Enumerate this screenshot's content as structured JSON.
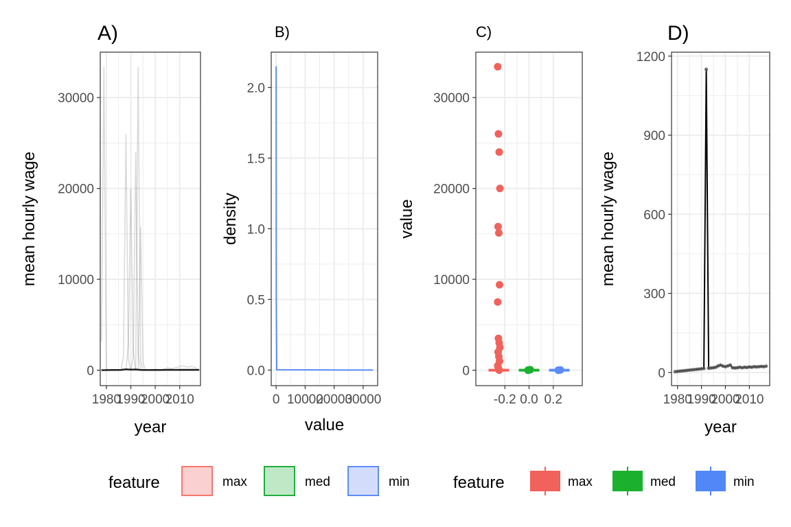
{
  "chart_data": [
    {
      "tag": "A)",
      "type": "line",
      "xlabel": "year",
      "ylabel": "mean hourly wage",
      "xticks": [
        1980,
        1990,
        2000,
        2010
      ],
      "xtick_labels": [
        "1980",
        "1990",
        "2000",
        "2010"
      ],
      "yticks": [
        0,
        10000,
        20000,
        30000
      ],
      "ytick_labels": [
        "0",
        "10000",
        "20000",
        "30000"
      ],
      "xlim": [
        1977.5,
        2018.5
      ],
      "ylim": [
        -1700,
        35000
      ],
      "grid": true,
      "series": [
        {
          "x": [
            1978,
            1979,
            1980,
            1981
          ],
          "values": [
            3200,
            33400,
            200,
            0
          ]
        },
        {
          "x": [
            1986,
            1987,
            1988,
            1989,
            1990
          ],
          "values": [
            0,
            1500,
            26000,
            1200,
            0
          ]
        },
        {
          "x": [
            1988,
            1989,
            1990,
            1991,
            1992
          ],
          "values": [
            0,
            3000,
            20000,
            2000,
            0
          ]
        },
        {
          "x": [
            1990,
            1991,
            1992,
            1993,
            1994
          ],
          "values": [
            0,
            1500,
            24000,
            1800,
            0
          ]
        },
        {
          "x": [
            1992,
            1993,
            1994,
            1995
          ],
          "values": [
            0,
            33400,
            1000,
            0
          ]
        },
        {
          "x": [
            1993,
            1994,
            1995,
            1996
          ],
          "values": [
            0,
            15800,
            800,
            0
          ]
        },
        {
          "x": [
            2003,
            2005,
            2007,
            2009,
            2011,
            2013,
            2015,
            2017
          ],
          "values": [
            80,
            250,
            180,
            320,
            500,
            350,
            420,
            200
          ]
        },
        {
          "x": [
            1978,
            1980,
            1982,
            1984,
            1986,
            1988,
            1990,
            1992,
            1994,
            1996,
            1998,
            2000,
            2002,
            2004,
            2006,
            2008,
            2010,
            2012,
            2014,
            2016,
            2018
          ],
          "values": [
            10,
            15,
            20,
            25,
            30,
            100,
            60,
            80,
            30,
            20,
            25,
            30,
            25,
            30,
            35,
            30,
            35,
            40,
            45,
            40,
            45
          ]
        }
      ]
    },
    {
      "tag": "B)",
      "type": "line",
      "xlabel": "value",
      "ylabel": "density",
      "xticks": [
        0,
        10000,
        20000,
        30000
      ],
      "xtick_labels": [
        "0",
        "10000",
        "20000",
        "30000"
      ],
      "yticks": [
        0.0,
        0.5,
        1.0,
        1.5,
        2.0
      ],
      "ytick_labels": [
        "0.0",
        "0.5",
        "1.0",
        "1.5",
        "2.0"
      ],
      "xlim": [
        -1700,
        35000
      ],
      "ylim": [
        -0.11,
        2.25
      ],
      "grid": true,
      "series": [
        {
          "group": "min",
          "x": [
            0,
            60,
            200,
            33400
          ],
          "values": [
            2.15,
            0.5,
            0.002,
            0.0
          ]
        }
      ]
    },
    {
      "tag": "C)",
      "type": "scatter",
      "xlabel": "",
      "ylabel": "value",
      "xticks": [
        -0.2,
        0.0,
        0.2
      ],
      "xtick_labels": [
        "-0.2",
        "0.0",
        "0.2"
      ],
      "yticks": [
        0,
        10000,
        20000,
        30000
      ],
      "ytick_labels": [
        "0",
        "10000",
        "20000",
        "30000"
      ],
      "xlim": [
        -0.44,
        0.44
      ],
      "ylim": [
        -1700,
        35000
      ],
      "grid": true,
      "series": [
        {
          "name": "max",
          "x": -0.25,
          "spread": 0.09,
          "values": [
            33400,
            26000,
            24000,
            20000,
            15800,
            15100,
            9400,
            7500,
            3500,
            3000,
            2500,
            2000,
            1500,
            1000,
            500,
            200,
            0
          ]
        },
        {
          "name": "med",
          "x": 0.0,
          "spread": 0.09,
          "values": [
            0,
            20,
            40,
            60
          ]
        },
        {
          "name": "min",
          "x": 0.25,
          "spread": 0.09,
          "values": [
            0,
            10,
            20,
            30
          ]
        }
      ]
    },
    {
      "tag": "D)",
      "type": "line",
      "xlabel": "year",
      "ylabel": "mean hourly wage",
      "xticks": [
        1980,
        1990,
        2000,
        2010
      ],
      "xtick_labels": [
        "1980",
        "1990",
        "2000",
        "2010"
      ],
      "yticks": [
        0,
        300,
        600,
        900,
        1200
      ],
      "ytick_labels": [
        "0",
        "300",
        "600",
        "900",
        "1200"
      ],
      "xlim": [
        1977.5,
        2018.5
      ],
      "ylim": [
        -50,
        1215
      ],
      "grid": true,
      "series": [
        {
          "x": [
            1979,
            1980,
            1981,
            1982,
            1983,
            1984,
            1985,
            1986,
            1987,
            1988,
            1989,
            1990,
            1991,
            1992,
            1993,
            1994,
            1995,
            1996,
            1997,
            1998,
            1999,
            2000,
            2001,
            2002,
            2003,
            2004,
            2005,
            2006,
            2007,
            2008,
            2009,
            2010,
            2011,
            2012,
            2013,
            2014,
            2015,
            2016,
            2017
          ],
          "values": [
            3,
            4,
            5,
            6,
            7,
            8,
            9,
            10,
            11,
            12,
            13,
            14,
            15,
            1150,
            16,
            17,
            18,
            20,
            25,
            28,
            24,
            22,
            25,
            28,
            18,
            17,
            18,
            20,
            18,
            20,
            19,
            21,
            20,
            22,
            21,
            22,
            23,
            22,
            24
          ]
        }
      ]
    }
  ],
  "legends": [
    {
      "title": "feature",
      "style": "fill",
      "items": [
        {
          "label": "max",
          "fill": "#fbd0d0",
          "stroke": "#f8766d"
        },
        {
          "label": "med",
          "fill": "#bfe8c6",
          "stroke": "#1fae3e"
        },
        {
          "label": "min",
          "fill": "#d3ddfb",
          "stroke": "#5b8cf7"
        }
      ]
    },
    {
      "title": "feature",
      "style": "point",
      "items": [
        {
          "label": "max",
          "fill": "#f0625b",
          "stroke": "#f0625b"
        },
        {
          "label": "med",
          "fill": "#1bb12f",
          "stroke": "#1bb12f"
        },
        {
          "label": "min",
          "fill": "#5287f7",
          "stroke": "#5287f7"
        }
      ]
    }
  ],
  "colors": {
    "max": "#f0625b",
    "med": "#1bb12f",
    "min": "#5b8cf7",
    "line": "#000000",
    "grid": "#ebebeb",
    "border": "#333333"
  }
}
